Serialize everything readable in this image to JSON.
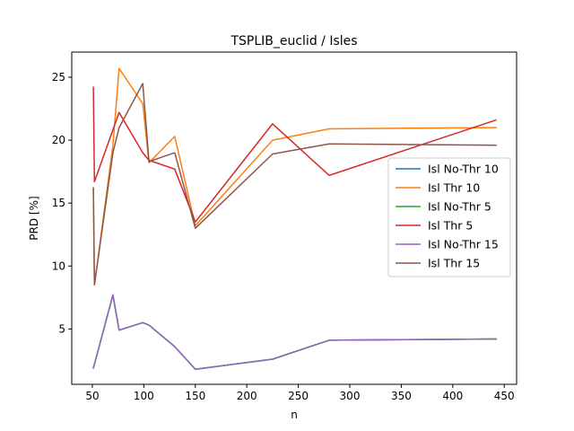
{
  "chart_data": {
    "type": "line",
    "title": "TSPLIB_euclid / Isles",
    "xlabel": "n",
    "ylabel": "PRD [%]",
    "xlim": [
      30,
      462
    ],
    "ylim": [
      0.6,
      27.0
    ],
    "xticks": [
      50,
      100,
      150,
      200,
      250,
      300,
      350,
      400,
      450
    ],
    "yticks": [
      5,
      10,
      15,
      20,
      25
    ],
    "legend_position": "center-right",
    "series": [
      {
        "name": "Isl No-Thr 10",
        "color": "#1f77b4",
        "points": [
          [
            51,
            1.9
          ],
          [
            52,
            2.2
          ],
          [
            70,
            7.7
          ],
          [
            76,
            4.9
          ],
          [
            99,
            5.5
          ],
          [
            105,
            5.3
          ],
          [
            130,
            3.6
          ],
          [
            150,
            1.8
          ],
          [
            225,
            2.6
          ],
          [
            280,
            4.1
          ],
          [
            442,
            4.2
          ]
        ]
      },
      {
        "name": "Isl Thr 10",
        "color": "#ff7f0e",
        "points": [
          [
            51,
            16.2
          ],
          [
            52,
            8.5
          ],
          [
            70,
            19.6
          ],
          [
            76,
            25.7
          ],
          [
            99,
            22.9
          ],
          [
            105,
            18.2
          ],
          [
            130,
            20.3
          ],
          [
            150,
            13.2
          ],
          [
            225,
            20.0
          ],
          [
            280,
            20.9
          ],
          [
            442,
            21.0
          ]
        ]
      },
      {
        "name": "Isl No-Thr 5",
        "color": "#2ca02c",
        "points": [
          [
            51,
            1.9
          ],
          [
            52,
            2.2
          ],
          [
            70,
            7.7
          ],
          [
            76,
            4.9
          ],
          [
            99,
            5.5
          ],
          [
            105,
            5.3
          ],
          [
            130,
            3.6
          ],
          [
            150,
            1.8
          ],
          [
            225,
            2.6
          ],
          [
            280,
            4.1
          ],
          [
            442,
            4.2
          ]
        ]
      },
      {
        "name": "Isl Thr 5",
        "color": "#d62728",
        "points": [
          [
            51,
            24.2
          ],
          [
            52,
            16.7
          ],
          [
            76,
            22.2
          ],
          [
            99,
            19.0
          ],
          [
            105,
            18.4
          ],
          [
            130,
            17.7
          ],
          [
            150,
            13.5
          ],
          [
            225,
            21.3
          ],
          [
            280,
            17.2
          ],
          [
            442,
            21.6
          ]
        ]
      },
      {
        "name": "Isl No-Thr 15",
        "color": "#9467bd",
        "points": [
          [
            51,
            1.9
          ],
          [
            52,
            2.2
          ],
          [
            70,
            7.7
          ],
          [
            76,
            4.9
          ],
          [
            99,
            5.5
          ],
          [
            105,
            5.3
          ],
          [
            130,
            3.6
          ],
          [
            150,
            1.8
          ],
          [
            225,
            2.6
          ],
          [
            280,
            4.1
          ],
          [
            442,
            4.2
          ]
        ]
      },
      {
        "name": "Isl Thr 15",
        "color": "#8c564b",
        "points": [
          [
            51,
            16.2
          ],
          [
            52,
            8.5
          ],
          [
            70,
            19.0
          ],
          [
            76,
            21.0
          ],
          [
            99,
            24.5
          ],
          [
            105,
            18.3
          ],
          [
            130,
            19.0
          ],
          [
            150,
            13.0
          ],
          [
            225,
            18.9
          ],
          [
            280,
            19.7
          ],
          [
            442,
            19.6
          ]
        ]
      }
    ]
  }
}
